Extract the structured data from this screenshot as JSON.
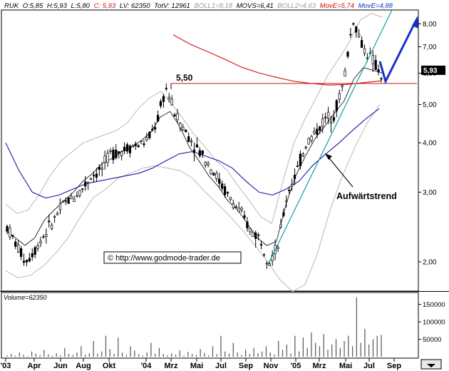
{
  "header": {
    "symbol": "RUK",
    "open": "O:5,85",
    "high": "H:5,93",
    "low": "L:5,80",
    "close": "C: 5,93",
    "last_volume": "LV: 62350",
    "total_volume": "TotV: 12961",
    "boll1": "BOLL1=8,18",
    "movs": "MOVS=6,41",
    "boll2": "BOLL2=4,63",
    "move1": "MovE=5,74",
    "move2": "MovE=4,88"
  },
  "colors": {
    "price": "#000000",
    "ema_fast": "#000000",
    "ema_slow": "#1a1aa8",
    "ema_long": "#d01010",
    "bollinger": "#b8b8b8",
    "trendline": "#10a0a0",
    "arrow": "#1530c8",
    "resistance": "#d01010",
    "header_red": "#d01010",
    "header_gray": "#9a9a9a",
    "header_blue": "#1530c8"
  },
  "copyright": "© http://www.godmode-trader.de",
  "resistance_label": "5,50",
  "trend_annotation": "Aufwärtstrend",
  "last_price_badge": "5,93",
  "volume_label": "Volume=62350",
  "chart_data": [
    {
      "type": "line",
      "scale": "log",
      "ylim": [
        1.7,
        8.6
      ],
      "y_ticks": [
        {
          "value": 2,
          "label": "2,00"
        },
        {
          "value": 3,
          "label": "3,00"
        },
        {
          "value": 4,
          "label": "4,00"
        },
        {
          "value": 5,
          "label": "5,00"
        },
        {
          "value": 6,
          "label": "6,00"
        },
        {
          "value": 7,
          "label": "7,00"
        },
        {
          "value": 8,
          "label": "8,00"
        }
      ],
      "x_labels": [
        "'03",
        "Apr",
        "Jun",
        "Aug",
        "Okt",
        "'04",
        "Mrz",
        "Mai",
        "Jul",
        "Sep",
        "Nov",
        "'05",
        "Mrz",
        "Mai",
        "Jul",
        "Sep"
      ],
      "months_count": 33,
      "price_close": [
        2.45,
        2.2,
        2.0,
        2.15,
        2.35,
        2.55,
        2.8,
        2.9,
        3.05,
        3.3,
        3.4,
        3.75,
        3.8,
        3.9,
        3.95,
        4.05,
        4.5,
        5.5,
        4.7,
        4.3,
        3.95,
        3.7,
        3.4,
        3.1,
        2.85,
        2.65,
        2.4,
        2.3,
        2.0,
        2.2,
        3.0,
        3.4,
        4.0,
        4.25,
        4.6,
        4.75,
        5.7,
        8.2,
        7.0,
        6.5,
        5.93
      ],
      "series": [
        {
          "key": "ema_fast",
          "values": [
            2.4,
            2.3,
            2.2,
            2.3,
            2.55,
            2.7,
            2.85,
            3.0,
            3.2,
            3.35,
            3.55,
            3.65,
            3.8,
            3.9,
            4.05,
            4.25,
            4.65,
            4.8,
            4.4,
            3.9,
            3.6,
            3.3,
            3.1,
            2.85,
            2.7,
            2.5,
            2.3,
            2.2,
            2.25,
            2.8,
            3.3,
            3.7,
            4.1,
            4.4,
            4.75,
            5.1,
            5.8,
            6.2,
            6.1,
            6.0
          ]
        },
        {
          "key": "ema_slow",
          "values": [
            4.0,
            3.4,
            3.0,
            2.9,
            2.95,
            3.05,
            3.15,
            3.2,
            3.25,
            3.3,
            3.35,
            3.45,
            3.6,
            3.75,
            3.8,
            3.7,
            3.6,
            3.45,
            3.2,
            3.0,
            2.95,
            3.05,
            3.2,
            3.5,
            3.75,
            4.0,
            4.3,
            4.6,
            4.88
          ]
        },
        {
          "key": "ema_long",
          "values": [
            7.5,
            7.1,
            6.8,
            6.5,
            6.2,
            6.0,
            5.85,
            5.72,
            5.65,
            5.6,
            5.62,
            5.68,
            5.74
          ]
        },
        {
          "key": "boll_upper",
          "values": [
            2.8,
            2.65,
            2.7,
            2.95,
            3.3,
            3.6,
            3.8,
            4.0,
            4.1,
            4.2,
            4.3,
            4.5,
            4.9,
            5.2,
            5.4,
            5.0,
            4.6,
            4.2,
            3.9,
            3.6,
            3.4,
            3.1,
            2.85,
            2.6,
            2.5,
            3.2,
            4.0,
            4.6,
            5.2,
            5.9,
            6.5,
            7.2,
            8.2,
            8.5,
            8.3
          ]
        },
        {
          "key": "boll_lower",
          "values": [
            1.9,
            1.82,
            1.85,
            1.95,
            2.1,
            2.3,
            2.6,
            2.9,
            3.05,
            3.25,
            3.35,
            3.45,
            3.5,
            3.45,
            3.4,
            3.25,
            3.0,
            2.8,
            2.6,
            2.4,
            2.2,
            2.0,
            1.8,
            1.68,
            1.75,
            2.1,
            2.7,
            3.3,
            3.9,
            4.5,
            5.0
          ]
        }
      ]
    },
    {
      "type": "bar",
      "ylim": [
        0,
        180000
      ],
      "y_ticks": [
        {
          "value": 50000,
          "label": "50000"
        },
        {
          "value": 100000,
          "label": "100000"
        },
        {
          "value": 150000,
          "label": "150000"
        }
      ],
      "values": [
        4000,
        8000,
        3000,
        12000,
        6000,
        2000,
        15000,
        9000,
        5000,
        20000,
        7000,
        3000,
        10000,
        4000,
        25000,
        8000,
        5000,
        12000,
        30000,
        6000,
        10000,
        45000,
        9000,
        15000,
        60000,
        22000,
        8000,
        55000,
        12000,
        5000,
        30000,
        18000,
        7000,
        3000,
        12000,
        40000,
        9000,
        25000,
        8000,
        4000,
        10000,
        6000,
        18000,
        3000,
        14000,
        8000,
        5000,
        22000,
        11000,
        4000,
        30000,
        7000,
        60000,
        15000,
        9000,
        40000,
        12000,
        5000,
        20000,
        8000,
        25000,
        10000,
        15000,
        30000,
        12000,
        6000,
        45000,
        20000,
        35000,
        9000,
        60000,
        15000,
        55000,
        25000,
        70000,
        40000,
        30000,
        65000,
        20000,
        35000,
        50000,
        25000,
        45000,
        60000,
        30000,
        170000,
        40000,
        80000,
        35000,
        50000,
        60000,
        62350
      ]
    }
  ]
}
